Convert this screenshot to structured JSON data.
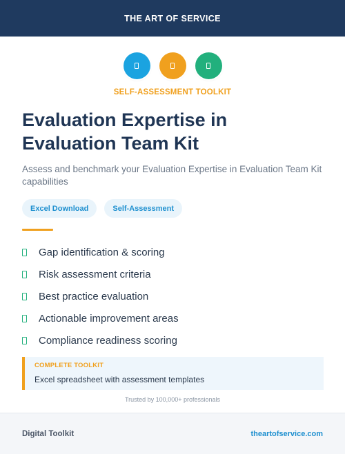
{
  "header": {
    "title": "THE ART OF SERVICE"
  },
  "icons": [
    {
      "name": "document-icon",
      "color": "#1ba3e0"
    },
    {
      "name": "document-icon",
      "color": "#f0a01e"
    },
    {
      "name": "document-icon",
      "color": "#22b07d"
    }
  ],
  "hero": {
    "label": "SELF-ASSESSMENT TOOLKIT",
    "title_line1": "Evaluation Expertise in",
    "title_line2": "Evaluation Team Kit",
    "description": "Assess and benchmark your Evaluation Expertise in Evaluation Team Kit capabilities"
  },
  "tags": [
    "Excel Download",
    "Self-Assessment"
  ],
  "features": [
    "Gap identification & scoring",
    "Risk assessment criteria",
    "Best practice evaluation",
    "Actionable improvement areas",
    "Compliance readiness scoring"
  ],
  "callout": {
    "label": "COMPLETE TOOLKIT",
    "text": "Excel spreadsheet with assessment templates"
  },
  "trusted": "Trusted by 100,000+ professionals",
  "footer": {
    "left": "Digital Toolkit",
    "right": "theartofservice.com"
  },
  "colors": {
    "header_bg": "#1f3a5f",
    "accent_orange": "#f0a01e",
    "accent_blue": "#1d8fcf",
    "accent_green": "#22b07d"
  }
}
